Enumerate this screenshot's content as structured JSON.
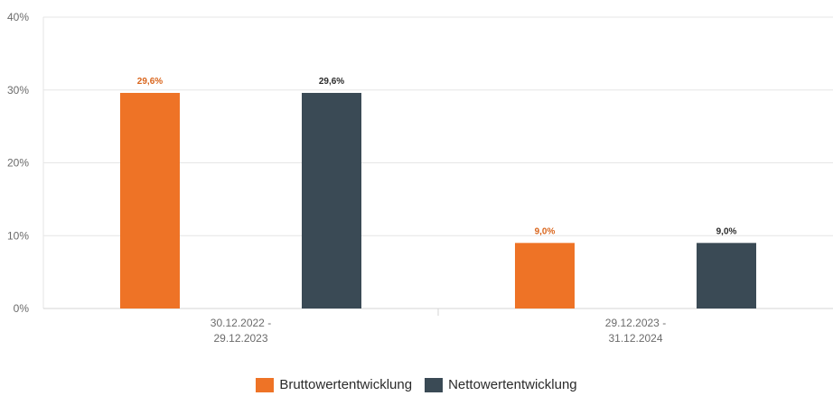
{
  "chart_data": {
    "type": "bar",
    "categories": [
      [
        "30.12.2022 -",
        "29.12.2023"
      ],
      [
        "29.12.2023 -",
        "31.12.2024"
      ]
    ],
    "series": [
      {
        "name": "Bruttowertentwicklung",
        "values": [
          29.6,
          9.0
        ],
        "labels": [
          "29,6%",
          "9,0%"
        ],
        "color": "#ee7326",
        "label_color": "#d9651c"
      },
      {
        "name": "Nettowertentwicklung",
        "values": [
          29.6,
          9.0
        ],
        "labels": [
          "29,6%",
          "9,0%"
        ],
        "color": "#3a4a55",
        "label_color": "#2b2b2b"
      }
    ],
    "ylim": [
      0,
      40
    ],
    "yticks": [
      0,
      10,
      20,
      30,
      40
    ],
    "ytick_labels": [
      "0%",
      "10%",
      "20%",
      "30%",
      "40%"
    ],
    "grid": true,
    "legend_position": "bottom-center"
  }
}
